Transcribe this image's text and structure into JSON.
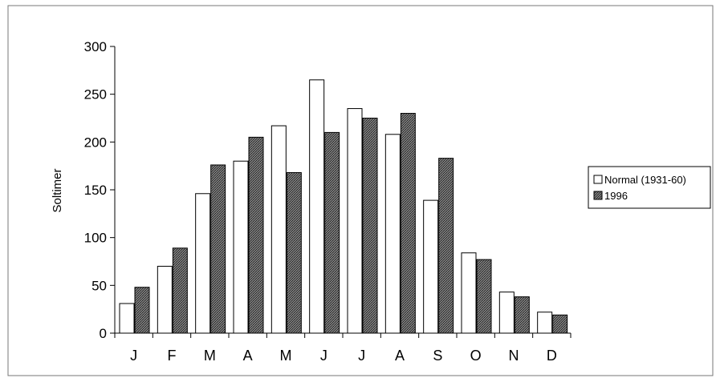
{
  "chart_data": {
    "type": "bar",
    "categories": [
      "J",
      "F",
      "M",
      "A",
      "M",
      "J",
      "J",
      "A",
      "S",
      "O",
      "N",
      "D"
    ],
    "series": [
      {
        "name": "Normal (1931-60)",
        "values": [
          31,
          70,
          146,
          180,
          217,
          265,
          235,
          208,
          139,
          84,
          43,
          22
        ],
        "color": "#ffffff"
      },
      {
        "name": "1996",
        "values": [
          48,
          89,
          176,
          205,
          168,
          210,
          225,
          230,
          183,
          77,
          38,
          19
        ],
        "color": "#555555"
      }
    ],
    "title": "",
    "xlabel": "",
    "ylabel": "Soltimer",
    "ylim": [
      0,
      300
    ],
    "yticks": [
      0,
      50,
      100,
      150,
      200,
      250,
      300
    ],
    "ytick_labels": [
      "0",
      "50",
      "100",
      "150",
      "200",
      "250",
      "300"
    ],
    "grid": false,
    "legend_position": "right"
  }
}
